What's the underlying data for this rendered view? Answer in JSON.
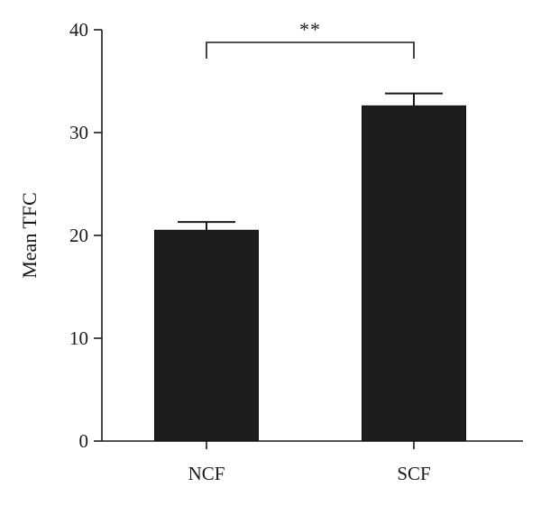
{
  "chart_data": {
    "type": "bar",
    "categories": [
      "NCF",
      "SCF"
    ],
    "values": [
      20.5,
      32.6
    ],
    "errors": [
      0.8,
      1.2
    ],
    "title": "",
    "xlabel": "",
    "ylabel": "Mean TFC",
    "ylim": [
      0,
      40
    ],
    "yticks": [
      0,
      10,
      20,
      30,
      40
    ],
    "ytick_labels": [
      "0",
      "10",
      "20",
      "30",
      "40"
    ],
    "grid": false,
    "bar_color": "#1c1c1c",
    "annotations": [
      {
        "type": "significance-bracket",
        "from": "NCF",
        "to": "SCF",
        "label": "**"
      }
    ]
  }
}
